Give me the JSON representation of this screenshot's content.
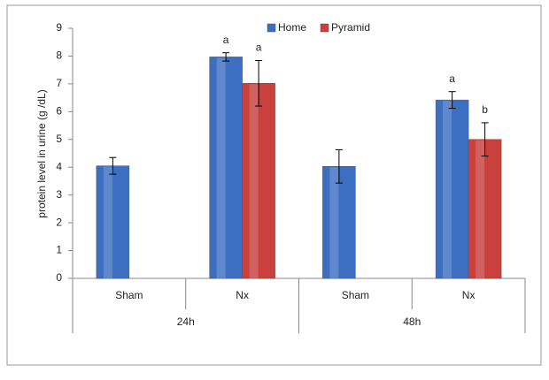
{
  "chart_data": {
    "type": "bar",
    "y_label": "protein level in urine (g /dL)",
    "categories": [
      "Sham",
      "Nx",
      "Sham",
      "Nx"
    ],
    "groups": [
      {
        "name": "24h",
        "span": 2
      },
      {
        "name": "48h",
        "span": 2
      }
    ],
    "series": [
      {
        "name": "Home",
        "color": "#3c6fc1",
        "values": [
          4.05,
          7.97,
          4.03,
          6.42
        ],
        "errors": [
          0.3,
          0.15,
          0.6,
          0.3
        ],
        "annotations": [
          null,
          "a",
          null,
          "a"
        ]
      },
      {
        "name": "Pyramid",
        "color": "#c9403c",
        "values": [
          null,
          7.02,
          null,
          5.0
        ],
        "errors": [
          null,
          0.82,
          null,
          0.6
        ],
        "annotations": [
          null,
          "a",
          null,
          "b"
        ]
      }
    ],
    "ylim": [
      0,
      9
    ],
    "yticks": [
      0,
      1,
      2,
      3,
      4,
      5,
      6,
      7,
      8,
      9
    ],
    "legend": "top",
    "grid": false
  }
}
